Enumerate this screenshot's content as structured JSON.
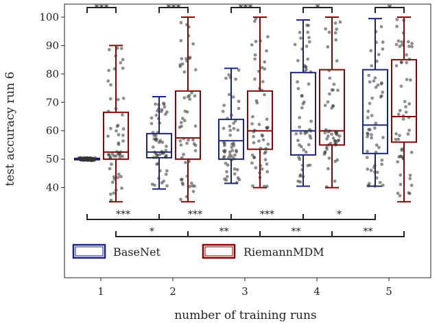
{
  "chart_data": {
    "type": "box",
    "xlabel": "number of training runs",
    "ylabel": "test accuracy run 6",
    "categories": [
      "1",
      "2",
      "3",
      "4",
      "5"
    ],
    "yticks": [
      40,
      50,
      60,
      70,
      80,
      90,
      100
    ],
    "ylim": [
      30,
      101
    ],
    "grid": false,
    "legend_position": "bottom-left",
    "series": [
      {
        "name": "BaseNet",
        "color": "#1a237e",
        "boxes": [
          {
            "whisker_low": 49.5,
            "q1": 49.8,
            "median": 50.0,
            "q3": 50.3,
            "whisker_high": 50.5
          },
          {
            "whisker_low": 39.5,
            "q1": 50.5,
            "median": 52.5,
            "q3": 59.0,
            "whisker_high": 72.0
          },
          {
            "whisker_low": 41.5,
            "q1": 50.0,
            "median": 56.5,
            "q3": 64.0,
            "whisker_high": 82.0
          },
          {
            "whisker_low": 40.5,
            "q1": 51.5,
            "median": 60.0,
            "q3": 80.5,
            "whisker_high": 99.0
          },
          {
            "whisker_low": 40.5,
            "q1": 52.0,
            "median": 62.0,
            "q3": 81.5,
            "whisker_high": 99.5
          }
        ]
      },
      {
        "name": "RiemannMDM",
        "color": "#8b0000",
        "boxes": [
          {
            "whisker_low": 35.0,
            "q1": 50.0,
            "median": 52.5,
            "q3": 66.5,
            "whisker_high": 90.0
          },
          {
            "whisker_low": 35.0,
            "q1": 50.0,
            "median": 57.5,
            "q3": 74.0,
            "whisker_high": 100.0
          },
          {
            "whisker_low": 40.0,
            "q1": 53.5,
            "median": 60.0,
            "q3": 74.0,
            "whisker_high": 100.0
          },
          {
            "whisker_low": 40.0,
            "q1": 55.0,
            "median": 60.0,
            "q3": 81.5,
            "whisker_high": 100.0
          },
          {
            "whisker_low": 35.0,
            "q1": 56.0,
            "median": 65.0,
            "q3": 85.0,
            "whisker_high": 100.0
          }
        ]
      }
    ],
    "significance_within": [
      {
        "category": "1",
        "label": "***"
      },
      {
        "category": "2",
        "label": "***"
      },
      {
        "category": "3",
        "label": "***"
      },
      {
        "category": "4",
        "label": "*"
      },
      {
        "category": "5",
        "label": "*"
      }
    ],
    "significance_between": [
      {
        "series": "BaseNet",
        "from": "1",
        "to": "2",
        "label": "***"
      },
      {
        "series": "BaseNet",
        "from": "2",
        "to": "3",
        "label": "***"
      },
      {
        "series": "BaseNet",
        "from": "3",
        "to": "4",
        "label": "***"
      },
      {
        "series": "BaseNet",
        "from": "4",
        "to": "5",
        "label": "*"
      },
      {
        "series": "RiemannMDM",
        "from": "1",
        "to": "2",
        "label": "*"
      },
      {
        "series": "RiemannMDM",
        "from": "2",
        "to": "3",
        "label": "**"
      },
      {
        "series": "RiemannMDM",
        "from": "3",
        "to": "4",
        "label": "**"
      },
      {
        "series": "RiemannMDM",
        "from": "4",
        "to": "5",
        "label": "**"
      }
    ],
    "point_color": "#333333"
  }
}
